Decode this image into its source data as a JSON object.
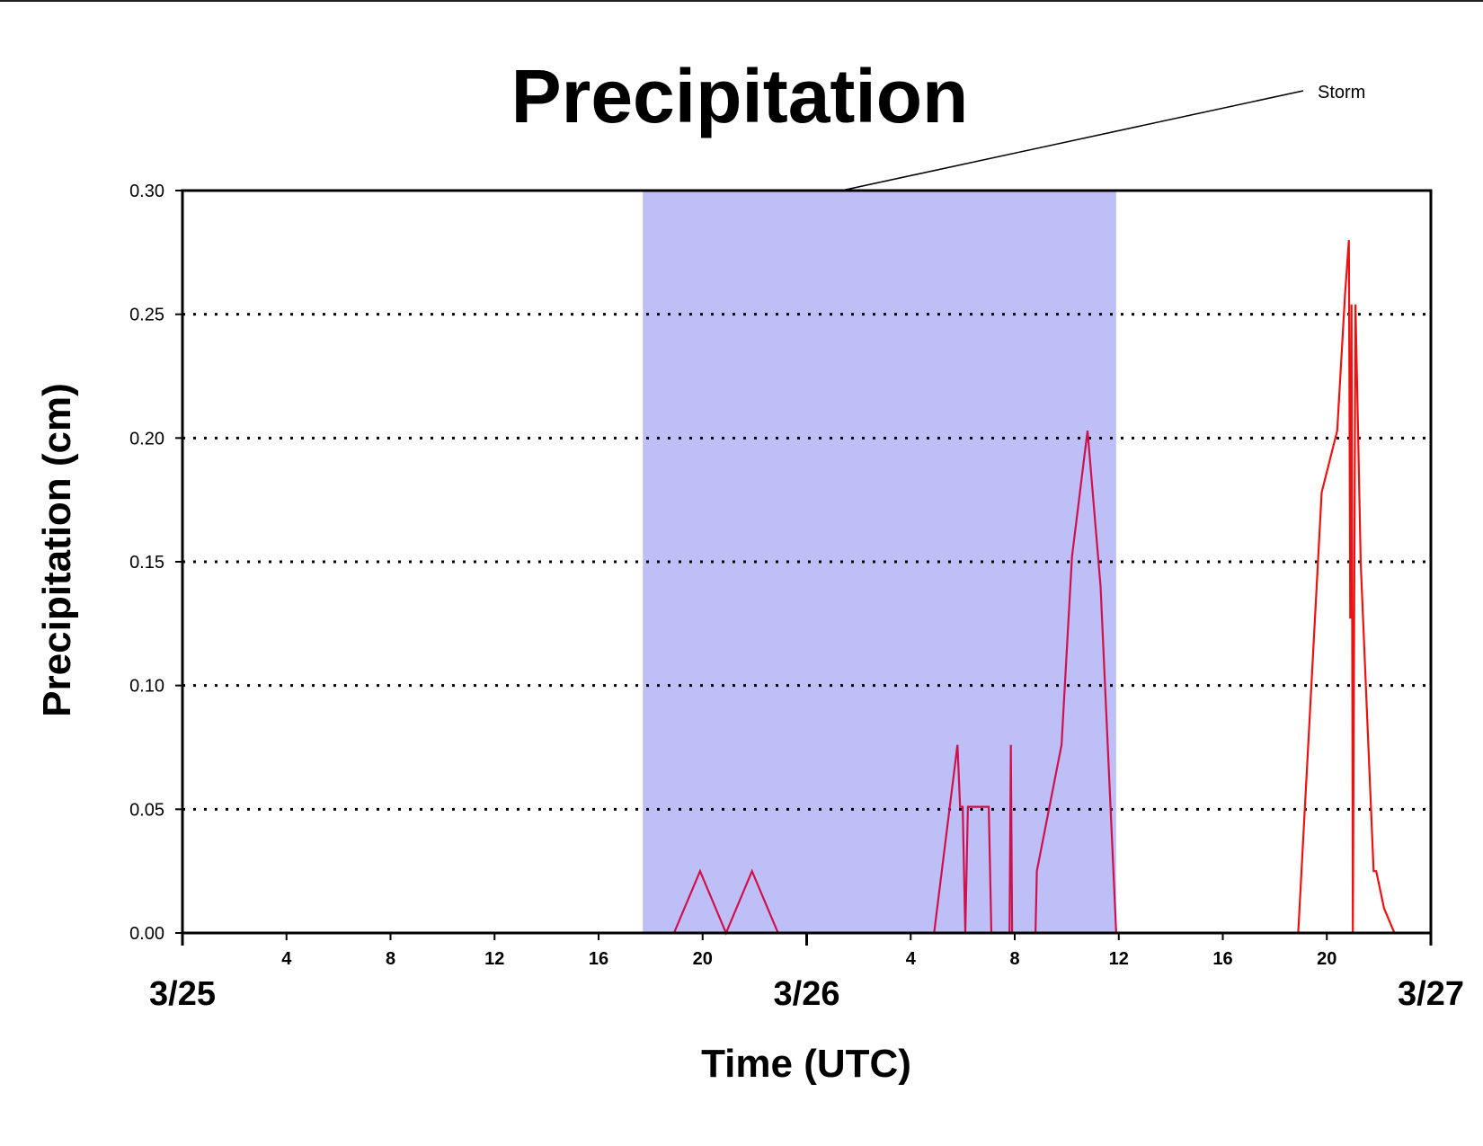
{
  "chart_data": {
    "type": "line",
    "title": "Precipitation",
    "xlabel": "Time (UTC)",
    "ylabel": "Precipitation (cm)",
    "ylim": [
      0,
      0.3
    ],
    "xlim_hours_from_3_25_00": [
      0,
      48
    ],
    "y_ticks": [
      "0.00",
      "0.05",
      "0.10",
      "0.15",
      "0.20",
      "0.25",
      "0.30"
    ],
    "x_ticks": [
      {
        "hour": 4,
        "label": "4"
      },
      {
        "hour": 8,
        "label": "8"
      },
      {
        "hour": 12,
        "label": "12"
      },
      {
        "hour": 16,
        "label": "16"
      },
      {
        "hour": 20,
        "label": "20"
      },
      {
        "hour": 28,
        "label": "4"
      },
      {
        "hour": 32,
        "label": "8"
      },
      {
        "hour": 36,
        "label": "12"
      },
      {
        "hour": 40,
        "label": "16"
      },
      {
        "hour": 44,
        "label": "20"
      }
    ],
    "day_labels": [
      {
        "hour": 0,
        "label": "3/25"
      },
      {
        "hour": 24,
        "label": "3/26"
      },
      {
        "hour": 48,
        "label": "3/27"
      }
    ],
    "grid": "horizontal dotted",
    "shaded_region": {
      "label": "Storm",
      "start_hour": 17.7,
      "end_hour": 35.9,
      "color": "#bfbff8"
    },
    "series": [
      {
        "color": "#d0104c",
        "x_hours": [
          0,
          18.9,
          19.9,
          20.9,
          21.9,
          22.9,
          28.9,
          29.8,
          29.9,
          30.0,
          30.1,
          30.2,
          31.0,
          31.1,
          31.8,
          31.85,
          31.9,
          32.0,
          32.8,
          32.85,
          33.8,
          34.2,
          34.8,
          35.3,
          35.9
        ],
        "y_values": [
          0,
          0,
          0.025,
          0,
          0.025,
          0,
          0,
          0.076,
          0.051,
          0.051,
          0,
          0.051,
          0.051,
          0,
          0,
          0.076,
          0,
          0,
          0,
          0.025,
          0.076,
          0.152,
          0.203,
          0.14,
          0
        ]
      },
      {
        "color": "#ee1111",
        "x_hours": [
          35.9,
          42.9,
          43.8,
          44.4,
          44.7,
          44.85,
          44.9,
          44.95,
          45.0,
          45.1,
          45.2,
          45.3,
          45.8,
          45.9,
          46.2,
          46.6,
          48.0
        ],
        "y_values": [
          0,
          0,
          0.178,
          0.203,
          0.258,
          0.28,
          0.127,
          0.254,
          0,
          0.254,
          0.203,
          0.15,
          0.025,
          0.025,
          0.01,
          0,
          0
        ]
      }
    ]
  }
}
